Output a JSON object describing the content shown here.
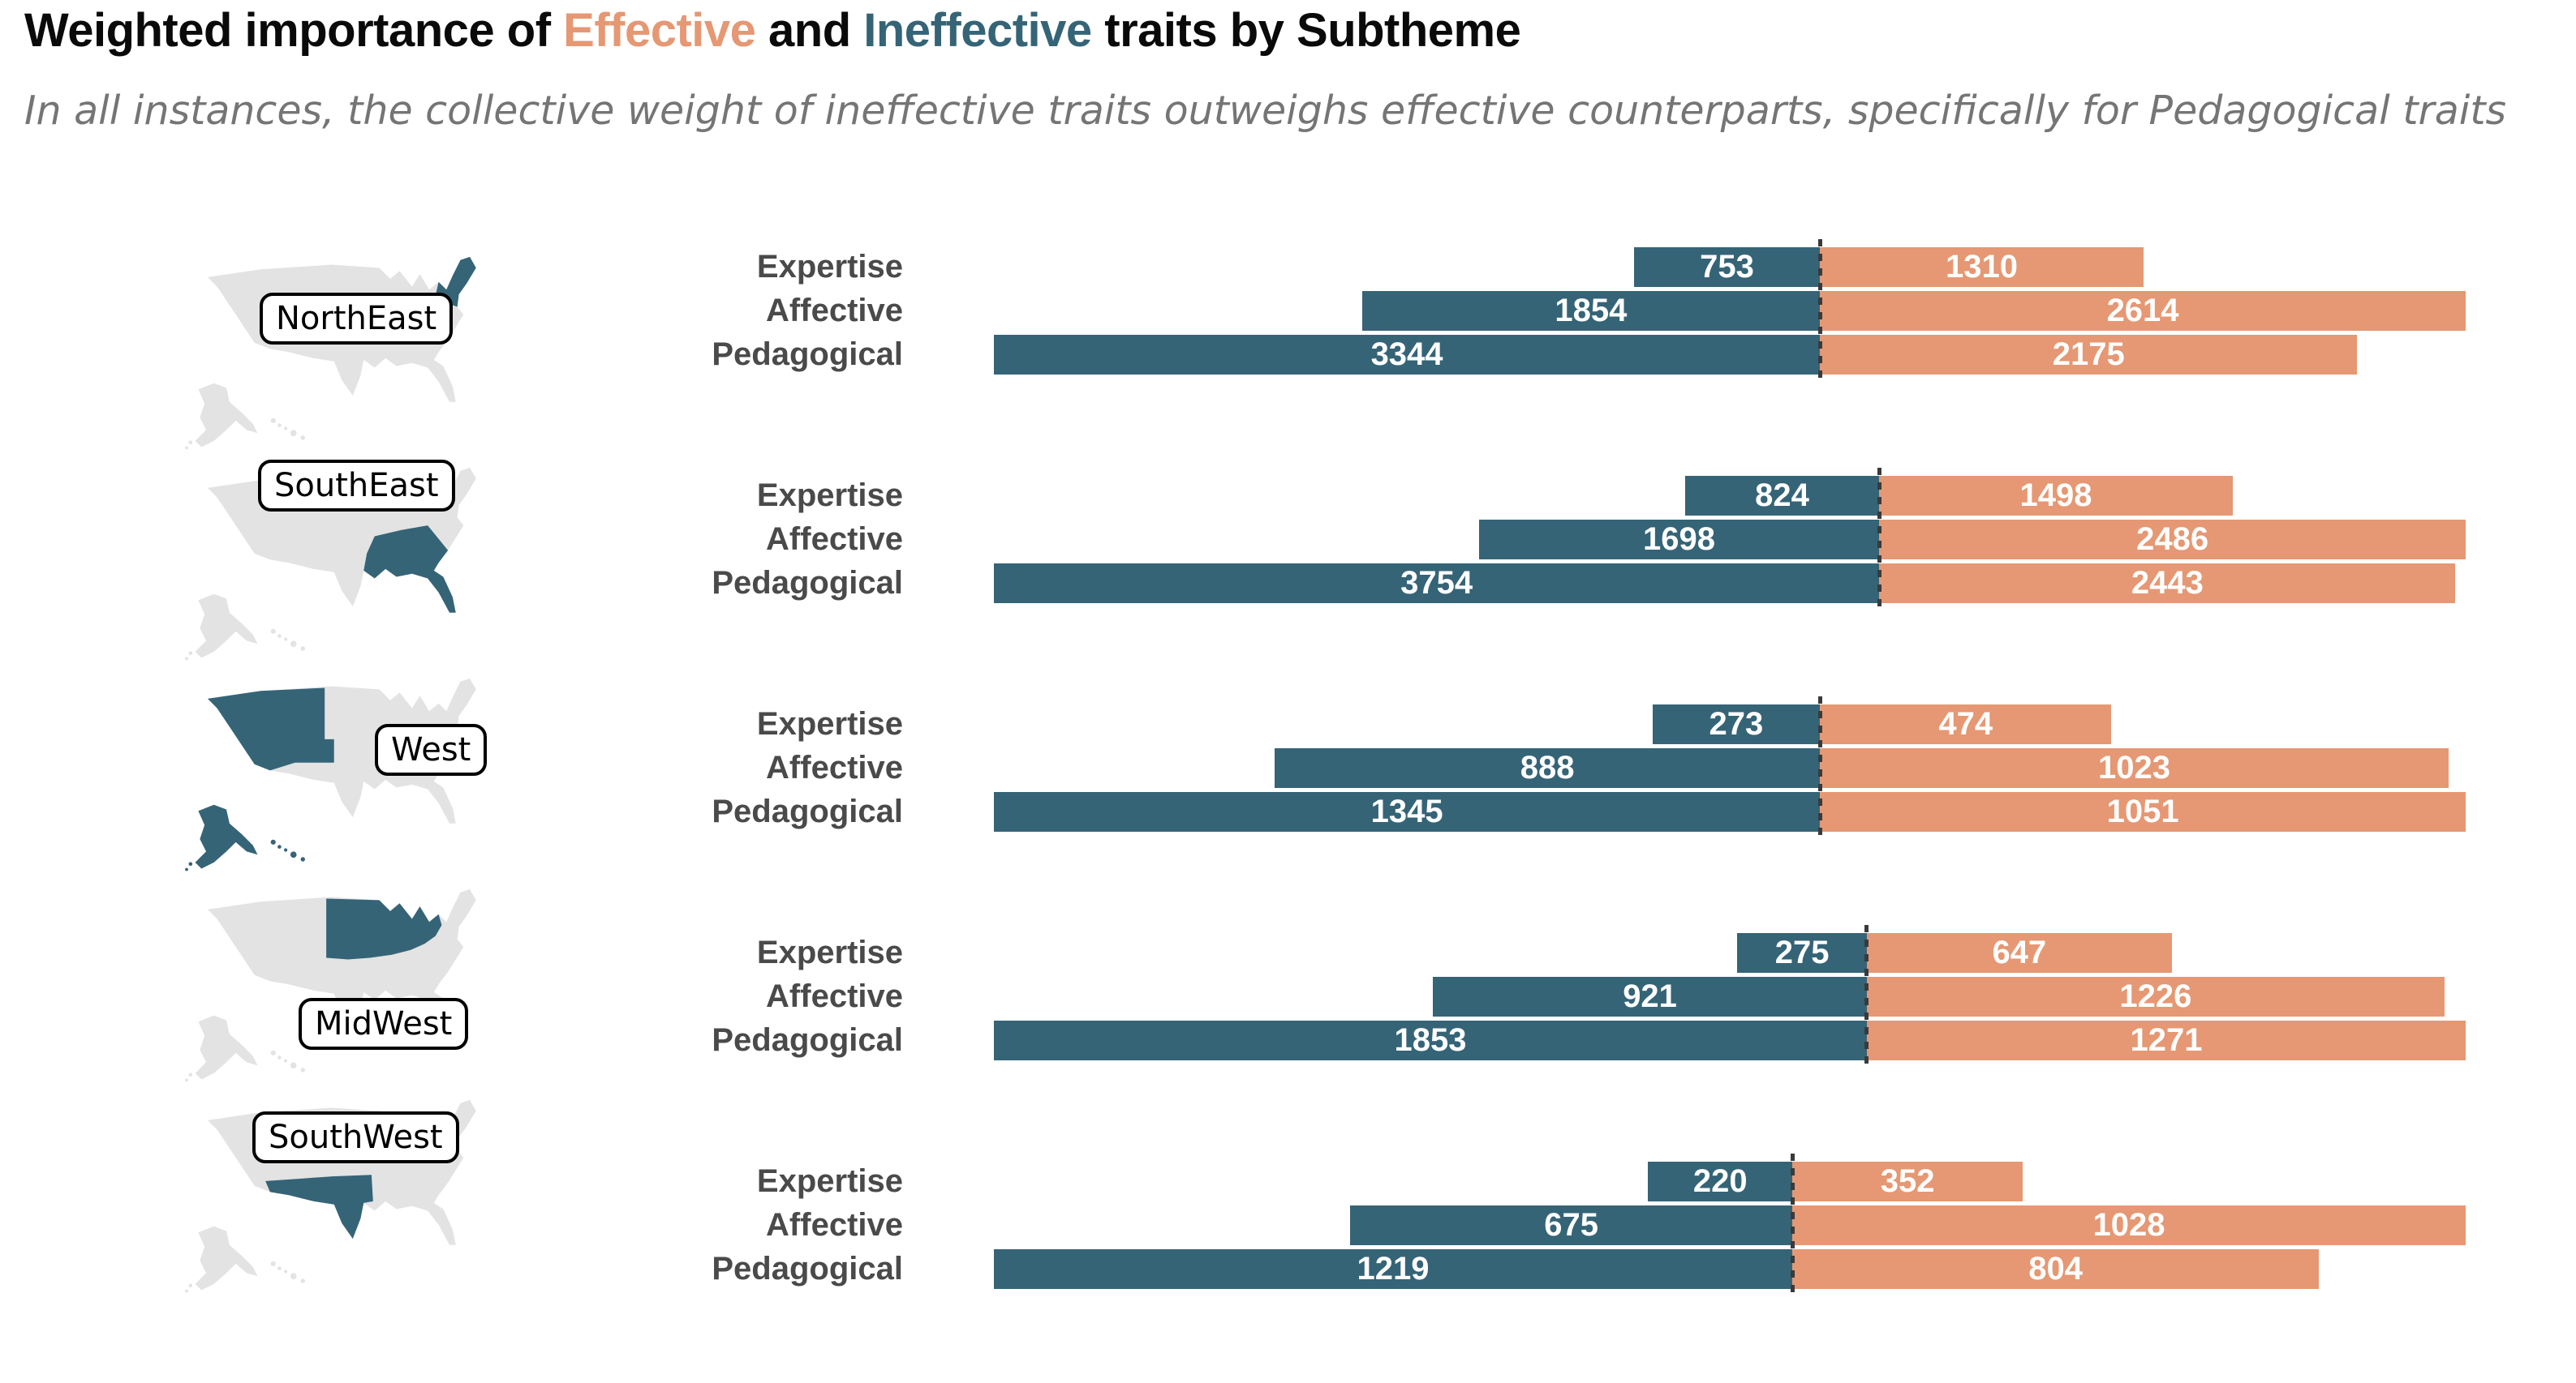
{
  "title": {
    "prefix": "Weighted importance of ",
    "effective_word": "Effective",
    "and_word": " and ",
    "ineffective_word": "Ineffective",
    "suffix": " traits by Subtheme"
  },
  "subtitle": "In all instances, the collective weight of ineffective traits outweighs effective counterparts, specifically for Pedagogical traits",
  "colors": {
    "effective": "#E59873",
    "ineffective": "#356477",
    "map_base": "#E3E3E3",
    "row_label": "#4A4A4A",
    "value_text": "#FFFFFF",
    "subtitle_text": "#757575",
    "title_text": "#0A0A0A",
    "divider": "#3A3A3A"
  },
  "chart_data": {
    "type": "bar",
    "variant": "diverging-horizontal, per-region scale, ineffective on left / effective on right",
    "categories": [
      "Expertise",
      "Affective",
      "Pedagogical"
    ],
    "series_labels": {
      "left": "Ineffective",
      "right": "Effective"
    },
    "legend": "encoded in title word colors",
    "regions": [
      {
        "name": "NorthEast",
        "ineffective": [
          753,
          1854,
          3344
        ],
        "effective": [
          1310,
          2614,
          2175
        ]
      },
      {
        "name": "SouthEast",
        "ineffective": [
          824,
          1698,
          3754
        ],
        "effective": [
          1498,
          2486,
          2443
        ]
      },
      {
        "name": "West",
        "ineffective": [
          273,
          888,
          1345
        ],
        "effective": [
          474,
          1023,
          1051
        ]
      },
      {
        "name": "MidWest",
        "ineffective": [
          275,
          921,
          1853
        ],
        "effective": [
          647,
          1226,
          1271
        ]
      },
      {
        "name": "SouthWest",
        "ineffective": [
          220,
          675,
          1219
        ],
        "effective": [
          352,
          1028,
          804
        ]
      }
    ]
  }
}
